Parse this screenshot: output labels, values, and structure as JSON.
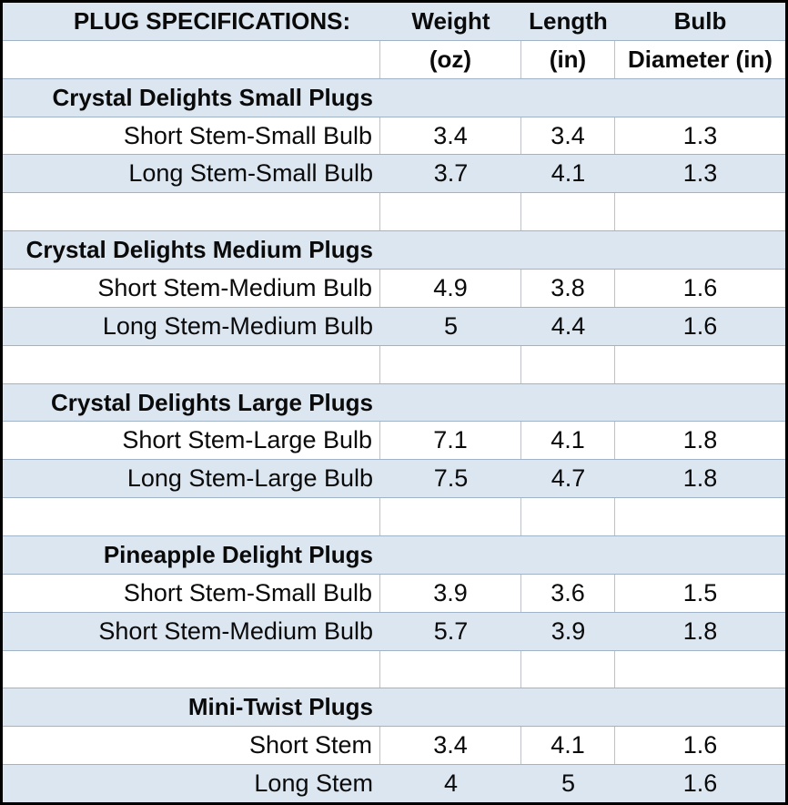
{
  "colors": {
    "band_blue": "#dce6f1",
    "row_line": "#a0b3c9",
    "col_line": "#bdc2c9",
    "outer_border": "#000000",
    "text": "#0a0a0a"
  },
  "header": {
    "title": "PLUG SPECIFICATIONS:",
    "weight": "Weight",
    "weight_units": "(oz)",
    "length": "Length",
    "length_units": "(in)",
    "bulb": "Bulb",
    "bulb_units": "Diameter (in)"
  },
  "sections": [
    {
      "name": "Crystal Delights Small Plugs",
      "rows": [
        {
          "label": "Short Stem-Small Bulb",
          "weight": "3.4",
          "length": "3.4",
          "bulb": "1.3"
        },
        {
          "label": "Long Stem-Small Bulb",
          "weight": "3.7",
          "length": "4.1",
          "bulb": "1.3"
        }
      ]
    },
    {
      "name": "Crystal Delights Medium Plugs",
      "rows": [
        {
          "label": "Short Stem-Medium Bulb",
          "weight": "4.9",
          "length": "3.8",
          "bulb": "1.6"
        },
        {
          "label": "Long Stem-Medium Bulb",
          "weight": "5",
          "length": "4.4",
          "bulb": "1.6"
        }
      ]
    },
    {
      "name": "Crystal Delights Large Plugs",
      "rows": [
        {
          "label": "Short Stem-Large Bulb",
          "weight": "7.1",
          "length": "4.1",
          "bulb": "1.8"
        },
        {
          "label": "Long Stem-Large Bulb",
          "weight": "7.5",
          "length": "4.7",
          "bulb": "1.8"
        }
      ]
    },
    {
      "name": "Pineapple Delight Plugs",
      "rows": [
        {
          "label": "Short Stem-Small Bulb",
          "weight": "3.9",
          "length": "3.6",
          "bulb": "1.5"
        },
        {
          "label": "Short Stem-Medium Bulb",
          "weight": "5.7",
          "length": "3.9",
          "bulb": "1.8"
        }
      ]
    },
    {
      "name": "Mini-Twist Plugs",
      "rows": [
        {
          "label": "Short Stem",
          "weight": "3.4",
          "length": "4.1",
          "bulb": "1.6"
        },
        {
          "label": "Long Stem",
          "weight": "4",
          "length": "5",
          "bulb": "1.6"
        }
      ]
    }
  ],
  "chart_data": {
    "type": "table",
    "title": "PLUG SPECIFICATIONS:",
    "columns": [
      "",
      "Weight (oz)",
      "Length (in)",
      "Bulb Diameter (in)"
    ],
    "sections": [
      {
        "name": "Crystal Delights Small Plugs",
        "rows": [
          [
            "Short Stem-Small Bulb",
            3.4,
            3.4,
            1.3
          ],
          [
            "Long Stem-Small Bulb",
            3.7,
            4.1,
            1.3
          ]
        ]
      },
      {
        "name": "Crystal Delights Medium Plugs",
        "rows": [
          [
            "Short Stem-Medium Bulb",
            4.9,
            3.8,
            1.6
          ],
          [
            "Long Stem-Medium Bulb",
            5,
            4.4,
            1.6
          ]
        ]
      },
      {
        "name": "Crystal Delights Large Plugs",
        "rows": [
          [
            "Short Stem-Large Bulb",
            7.1,
            4.1,
            1.8
          ],
          [
            "Long Stem-Large Bulb",
            7.5,
            4.7,
            1.8
          ]
        ]
      },
      {
        "name": "Pineapple Delight Plugs",
        "rows": [
          [
            "Short Stem-Small Bulb",
            3.9,
            3.6,
            1.5
          ],
          [
            "Short Stem-Medium Bulb",
            5.7,
            3.9,
            1.8
          ]
        ]
      },
      {
        "name": "Mini-Twist Plugs",
        "rows": [
          [
            "Short Stem",
            3.4,
            4.1,
            1.6
          ],
          [
            "Long Stem",
            4,
            5,
            1.6
          ]
        ]
      }
    ]
  }
}
